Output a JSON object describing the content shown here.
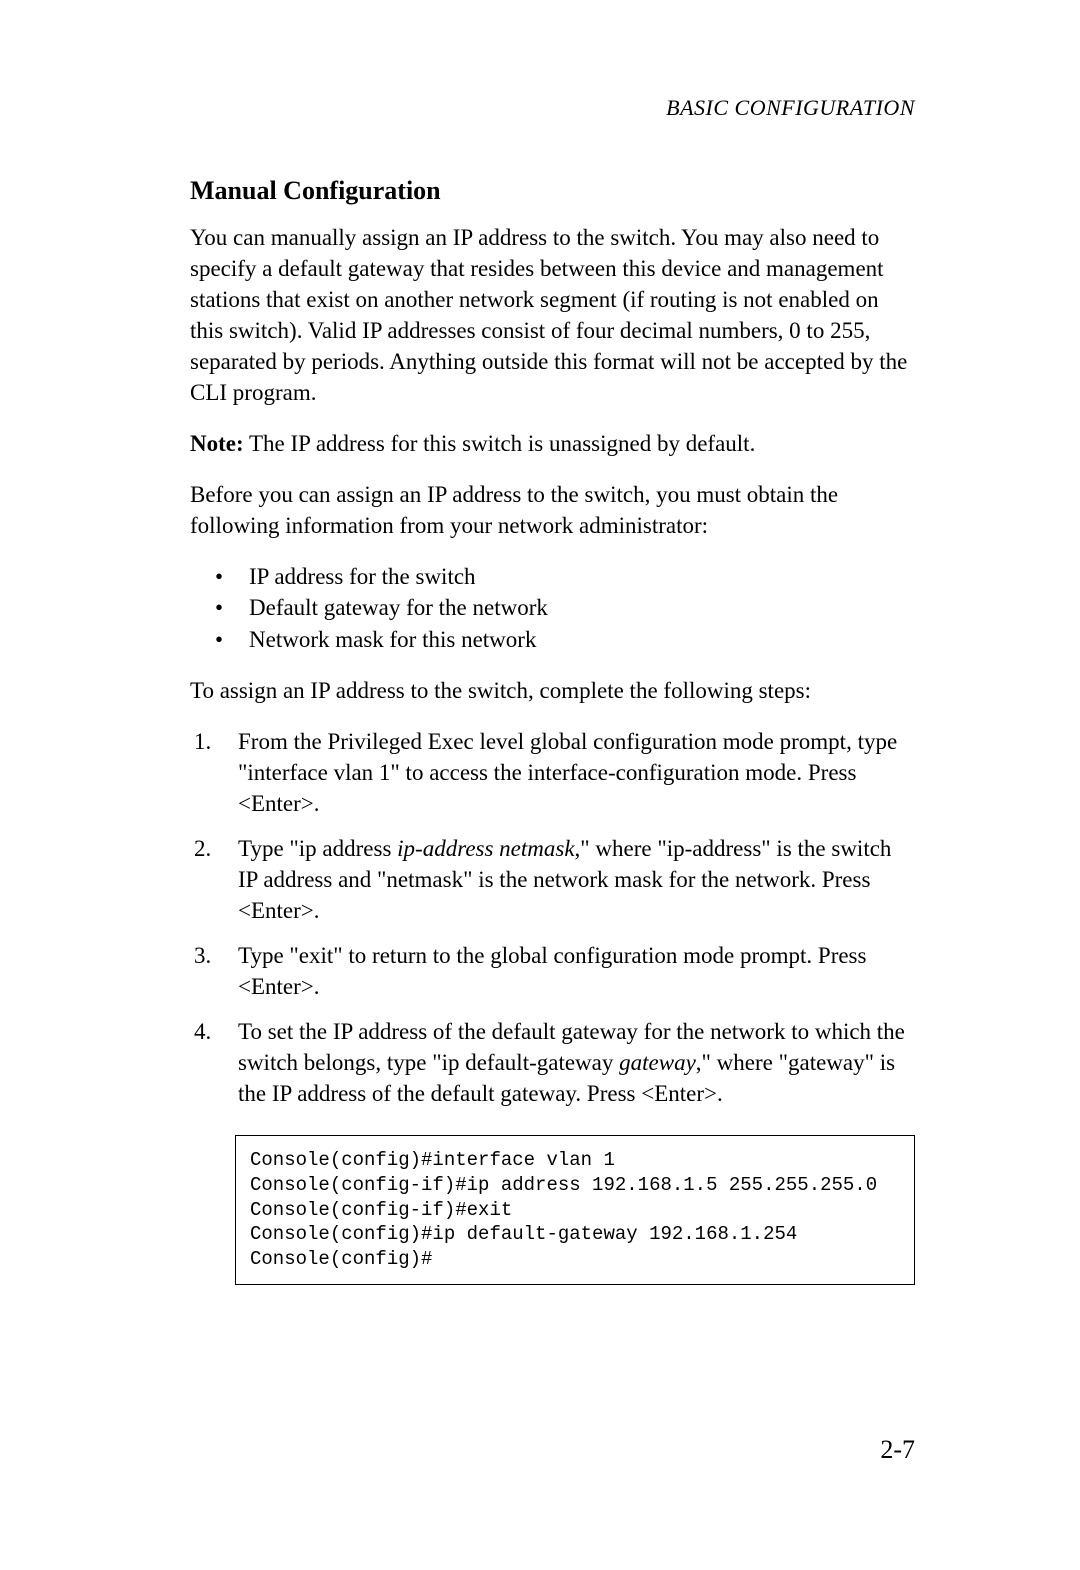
{
  "header": "BASIC CONFIGURATION",
  "sectionTitle": "Manual Configuration",
  "para1": "You can manually assign an IP address to the switch. You may also need to specify a default gateway that resides between this device and management stations that exist on another network segment (if routing is not enabled on this switch). Valid IP addresses consist of four decimal numbers, 0 to 255, separated by periods. Anything outside this format will not be accepted by the CLI program.",
  "noteLabel": "Note:",
  "noteText": "The IP address for this switch is unassigned by default.",
  "para2": "Before you can assign an IP address to the switch, you must obtain the following information from your network administrator:",
  "bullets": [
    "IP address for the switch",
    "Default gateway for the network",
    "Network mask for this network"
  ],
  "para3": "To assign an IP address to the switch, complete the following steps:",
  "steps": {
    "s1": "From the Privileged Exec level global configuration mode prompt, type \"interface vlan 1\" to access the interface-configuration mode. Press <Enter>.",
    "s2a": "Type \"ip address ",
    "s2i": "ip-address netmask",
    "s2b": ",\" where \"ip-address\" is the switch IP address and \"netmask\" is the network mask for the network. Press <Enter>.",
    "s3": "Type \"exit\" to return to the global configuration mode prompt. Press <Enter>.",
    "s4a": "To set the IP address of the default gateway for the network to which the switch belongs, type \"ip default-gateway ",
    "s4i": "gateway",
    "s4b": ",\" where \"gateway\" is the IP address of the default gateway. Press <Enter>."
  },
  "code": "Console(config)#interface vlan 1\nConsole(config-if)#ip address 192.168.1.5 255.255.255.0\nConsole(config-if)#exit\nConsole(config)#ip default-gateway 192.168.1.254\nConsole(config)#",
  "pageNumber": "2-7",
  "bulletMarker": "•",
  "numMarkers": [
    "1.",
    "2.",
    "3.",
    "4."
  ]
}
